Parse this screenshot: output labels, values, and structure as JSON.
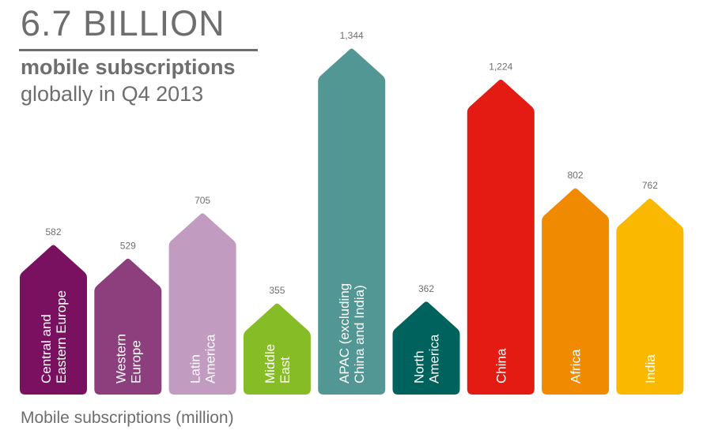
{
  "header": {
    "headline": "6.7 BILLION",
    "subtitle_line1": "mobile subscriptions",
    "subtitle_line2": "globally in Q4 2013"
  },
  "footer": {
    "caption": "Mobile subscriptions (million)"
  },
  "chart_data": {
    "type": "bar",
    "title": "6.7 BILLION mobile subscriptions globally in Q4 2013",
    "xlabel": "",
    "ylabel": "Mobile subscriptions (million)",
    "ylim": [
      0,
      1400
    ],
    "grid": false,
    "legend": "none",
    "categories": [
      [
        "Central and",
        "Eastern Europe"
      ],
      [
        "Western",
        "Europe"
      ],
      [
        "Latin",
        "America"
      ],
      [
        "Middle",
        "East"
      ],
      [
        "APAC (excluding",
        "China and India)"
      ],
      [
        "North",
        "America"
      ],
      [
        "China"
      ],
      [
        "Africa"
      ],
      [
        "India"
      ]
    ],
    "values": [
      582,
      529,
      705,
      355,
      1344,
      362,
      1224,
      802,
      762
    ],
    "value_labels": [
      "582",
      "529",
      "705",
      "355",
      "1,344",
      "362",
      "1,224",
      "802",
      "762"
    ],
    "colors": [
      "#7a1060",
      "#8c3f7c",
      "#c19bc0",
      "#86bc25",
      "#529793",
      "#00625c",
      "#e31b13",
      "#f08a00",
      "#fab800"
    ]
  }
}
